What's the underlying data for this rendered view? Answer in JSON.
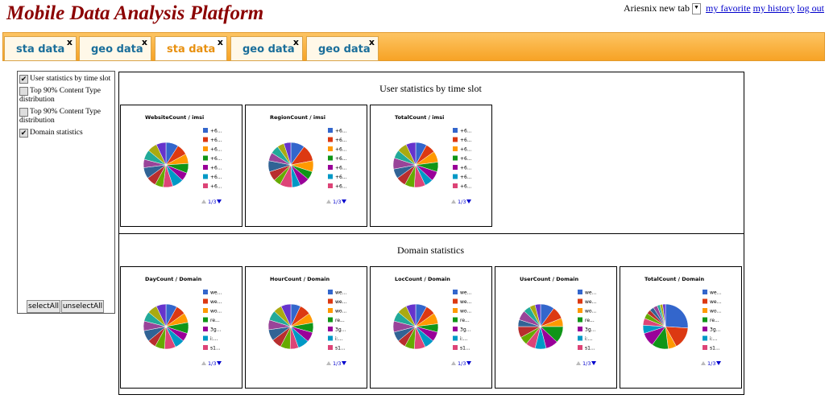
{
  "header": {
    "title": "Mobile Data Analysis Platform",
    "user": "Ariesnix",
    "new_tab": "new tab",
    "links": [
      "my favorite",
      "my history",
      "log out"
    ]
  },
  "tabs": {
    "active": 2,
    "items": [
      {
        "label": "sta data",
        "close": "x"
      },
      {
        "label": "geo data",
        "close": "x"
      },
      {
        "label": "sta data",
        "close": "x"
      },
      {
        "label": "geo data",
        "close": "x"
      },
      {
        "label": "geo data",
        "close": "x"
      }
    ]
  },
  "sidebar": {
    "items": [
      {
        "label": "User statistics by time slot",
        "checked": true
      },
      {
        "label": "Top 90% Content Type distribution",
        "checked": false
      },
      {
        "label": "Top 90% Content Type distribution",
        "checked": false
      },
      {
        "label": "Domain statistics",
        "checked": true
      }
    ],
    "buttons": [
      "selectAll",
      "unselectAll"
    ]
  },
  "colors": [
    "#3366cc",
    "#dc3912",
    "#ff9900",
    "#109618",
    "#990099",
    "#0099c6",
    "#dd4477",
    "#66aa00",
    "#b82e2e",
    "#316395",
    "#994499",
    "#22aa99",
    "#aaaa11",
    "#6633cc"
  ],
  "sections": [
    {
      "title": "User statistics by time slot",
      "charts": [
        {
          "title": "WebsiteCount / imsi",
          "legend": [
            "+6...",
            "+6...",
            "+6...",
            "+6...",
            "+6...",
            "+6...",
            "+6..."
          ],
          "pager": "1/3",
          "values": [
            9,
            8,
            7,
            7,
            6,
            8,
            7,
            6,
            7,
            8,
            6,
            7,
            7,
            7
          ]
        },
        {
          "title": "RegionCount / imsi",
          "legend": [
            "+6...",
            "+6...",
            "+6...",
            "+6...",
            "+6...",
            "+6...",
            "+6..."
          ],
          "pager": "1/3",
          "values": [
            10,
            12,
            8,
            6,
            7,
            6,
            9,
            5,
            7,
            8,
            6,
            6,
            5,
            5
          ]
        },
        {
          "title": "TotalCount / imsi",
          "legend": [
            "+6...",
            "+6...",
            "+6...",
            "+6...",
            "+6...",
            "+6...",
            "+6..."
          ],
          "pager": "1/3",
          "values": [
            8,
            7,
            8,
            7,
            7,
            6,
            8,
            7,
            7,
            7,
            8,
            6,
            7,
            7
          ]
        }
      ]
    },
    {
      "title": "Domain statistics",
      "charts": [
        {
          "title": "DayCount / Domain",
          "legend": [
            "we...",
            "we...",
            "wo...",
            "re...",
            "3g...",
            "i:...",
            "s1..."
          ],
          "pager": "1/3",
          "values": [
            8,
            7,
            7,
            8,
            6,
            7,
            8,
            7,
            6,
            8,
            7,
            7,
            7,
            7
          ]
        },
        {
          "title": "HourCount / Domain",
          "legend": [
            "we...",
            "we...",
            "wo...",
            "re...",
            "3g...",
            "i:...",
            "s1..."
          ],
          "pager": "1/3",
          "values": [
            7,
            8,
            7,
            7,
            7,
            8,
            6,
            7,
            7,
            8,
            7,
            7,
            6,
            7
          ]
        },
        {
          "title": "LocCount / Domain",
          "legend": [
            "we...",
            "we...",
            "wo...",
            "re...",
            "3g...",
            "i:...",
            "s1..."
          ],
          "pager": "1/3",
          "values": [
            8,
            7,
            8,
            6,
            7,
            7,
            8,
            7,
            6,
            7,
            8,
            7,
            7,
            7
          ]
        },
        {
          "title": "UserCount / Domain",
          "legend": [
            "we...",
            "we...",
            "wo...",
            "re...",
            "3g...",
            "i:...",
            "s1..."
          ],
          "pager": "1/3",
          "values": [
            10,
            9,
            6,
            12,
            9,
            8,
            7,
            6,
            8,
            5,
            7,
            5,
            4,
            4
          ]
        },
        {
          "title": "TotalCount / Domain",
          "legend": [
            "we...",
            "we...",
            "wo...",
            "re...",
            "3g...",
            "i:...",
            "s1..."
          ],
          "pager": "1/3",
          "values": [
            26,
            16,
            6,
            12,
            10,
            6,
            5,
            4,
            3,
            3,
            3,
            2,
            2,
            2
          ]
        }
      ]
    }
  ]
}
